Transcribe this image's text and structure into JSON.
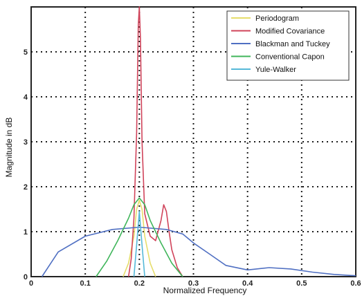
{
  "chart_data": {
    "type": "line",
    "xlabel": "Normalized Frequency",
    "ylabel": "Magnitude in dB",
    "xlim": [
      0,
      0.6
    ],
    "ylim": [
      0,
      6
    ],
    "x_ticks": [
      "0",
      "0.1",
      "0.2",
      "0.3",
      "0.4",
      "0.5",
      "0.6"
    ],
    "y_ticks": [
      "0",
      "1",
      "2",
      "3",
      "4",
      "5"
    ],
    "grid": true,
    "legend_position": "top-right",
    "series": [
      {
        "name": "Periodogram",
        "color": "#e6dd6a",
        "x": [
          0.17,
          0.18,
          0.19,
          0.195,
          0.2,
          0.205,
          0.21,
          0.22,
          0.23
        ],
        "y": [
          0.0,
          0.3,
          0.9,
          1.5,
          1.7,
          1.5,
          0.9,
          0.3,
          0.0
        ]
      },
      {
        "name": "Modified Covariance",
        "color": "#d0435a",
        "x": [
          0.18,
          0.185,
          0.19,
          0.195,
          0.198,
          0.2,
          0.202,
          0.205,
          0.21,
          0.22,
          0.23,
          0.24,
          0.245,
          0.25,
          0.255,
          0.26,
          0.27,
          0.28
        ],
        "y": [
          0.0,
          0.4,
          1.3,
          3.2,
          5.6,
          6.0,
          5.3,
          3.0,
          1.4,
          0.9,
          0.8,
          1.25,
          1.6,
          1.45,
          1.0,
          0.6,
          0.2,
          0.0
        ]
      },
      {
        "name": "Blackman and Tuckey",
        "color": "#4f6fc2",
        "x": [
          0.02,
          0.05,
          0.1,
          0.15,
          0.2,
          0.25,
          0.28,
          0.3,
          0.33,
          0.36,
          0.4,
          0.44,
          0.48,
          0.52,
          0.56,
          0.6
        ],
        "y": [
          0.0,
          0.55,
          0.9,
          1.05,
          1.1,
          1.05,
          0.95,
          0.75,
          0.5,
          0.25,
          0.15,
          0.2,
          0.17,
          0.1,
          0.05,
          0.02
        ]
      },
      {
        "name": "Conventional Capon",
        "color": "#3fb55a",
        "x": [
          0.12,
          0.14,
          0.16,
          0.18,
          0.19,
          0.2,
          0.21,
          0.22,
          0.24,
          0.26,
          0.28
        ],
        "y": [
          0.0,
          0.35,
          0.8,
          1.3,
          1.6,
          1.75,
          1.6,
          1.25,
          0.75,
          0.3,
          0.0
        ]
      },
      {
        "name": "Yule-Walker",
        "color": "#55b8d8",
        "x": [
          0.19,
          0.195,
          0.2,
          0.205,
          0.21
        ],
        "y": [
          0.0,
          0.7,
          1.45,
          0.7,
          0.0
        ]
      }
    ]
  }
}
